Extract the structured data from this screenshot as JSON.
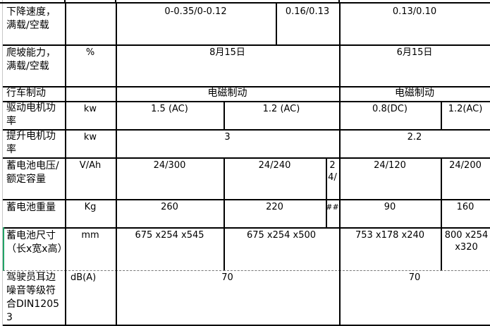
{
  "rows": [
    {
      "label": "下降速度，满载/空载",
      "unit": "",
      "values": [
        "0-0.35/0-0.12",
        "0.16/0.13",
        "0.13/0.10"
      ]
    },
    {
      "label": "爬坡能力，满载/空载",
      "unit": "%",
      "values": [
        "8月15日",
        "6月15日"
      ]
    },
    {
      "label": "行车制动",
      "unit": "",
      "values": [
        "电磁制动",
        "电磁制动"
      ]
    },
    {
      "label": "驱动电机功率",
      "unit": "kw",
      "values": [
        "1.5 (AC)",
        "1.2 (AC)",
        "0.8(DC)",
        "1.2(AC)"
      ]
    },
    {
      "label": "提升电机功率",
      "unit": "kw",
      "values": [
        "3",
        "2.2"
      ]
    },
    {
      "label": "蓄电池电压/额定容量",
      "unit": "V/Ah",
      "values": [
        "24/300",
        "24/240",
        "24/",
        "24/120",
        "24/200"
      ]
    },
    {
      "label": "蓄电池重量",
      "unit": "Kg",
      "values": [
        "260",
        "220",
        "##",
        "90",
        "160"
      ]
    },
    {
      "label": "蓄电池尺寸（长x宽x高）",
      "unit": "mm",
      "values": [
        "675 x254 x545",
        "675 x254 x500",
        "753 x178 x240",
        "800 x254 x320"
      ]
    },
    {
      "label": "驾驶员耳边噪音等级符合DIN12053",
      "unit": "dB(A)",
      "values": [
        "70",
        "70"
      ]
    }
  ],
  "colors": {
    "grid": "#000000",
    "selection": "#21a366"
  }
}
